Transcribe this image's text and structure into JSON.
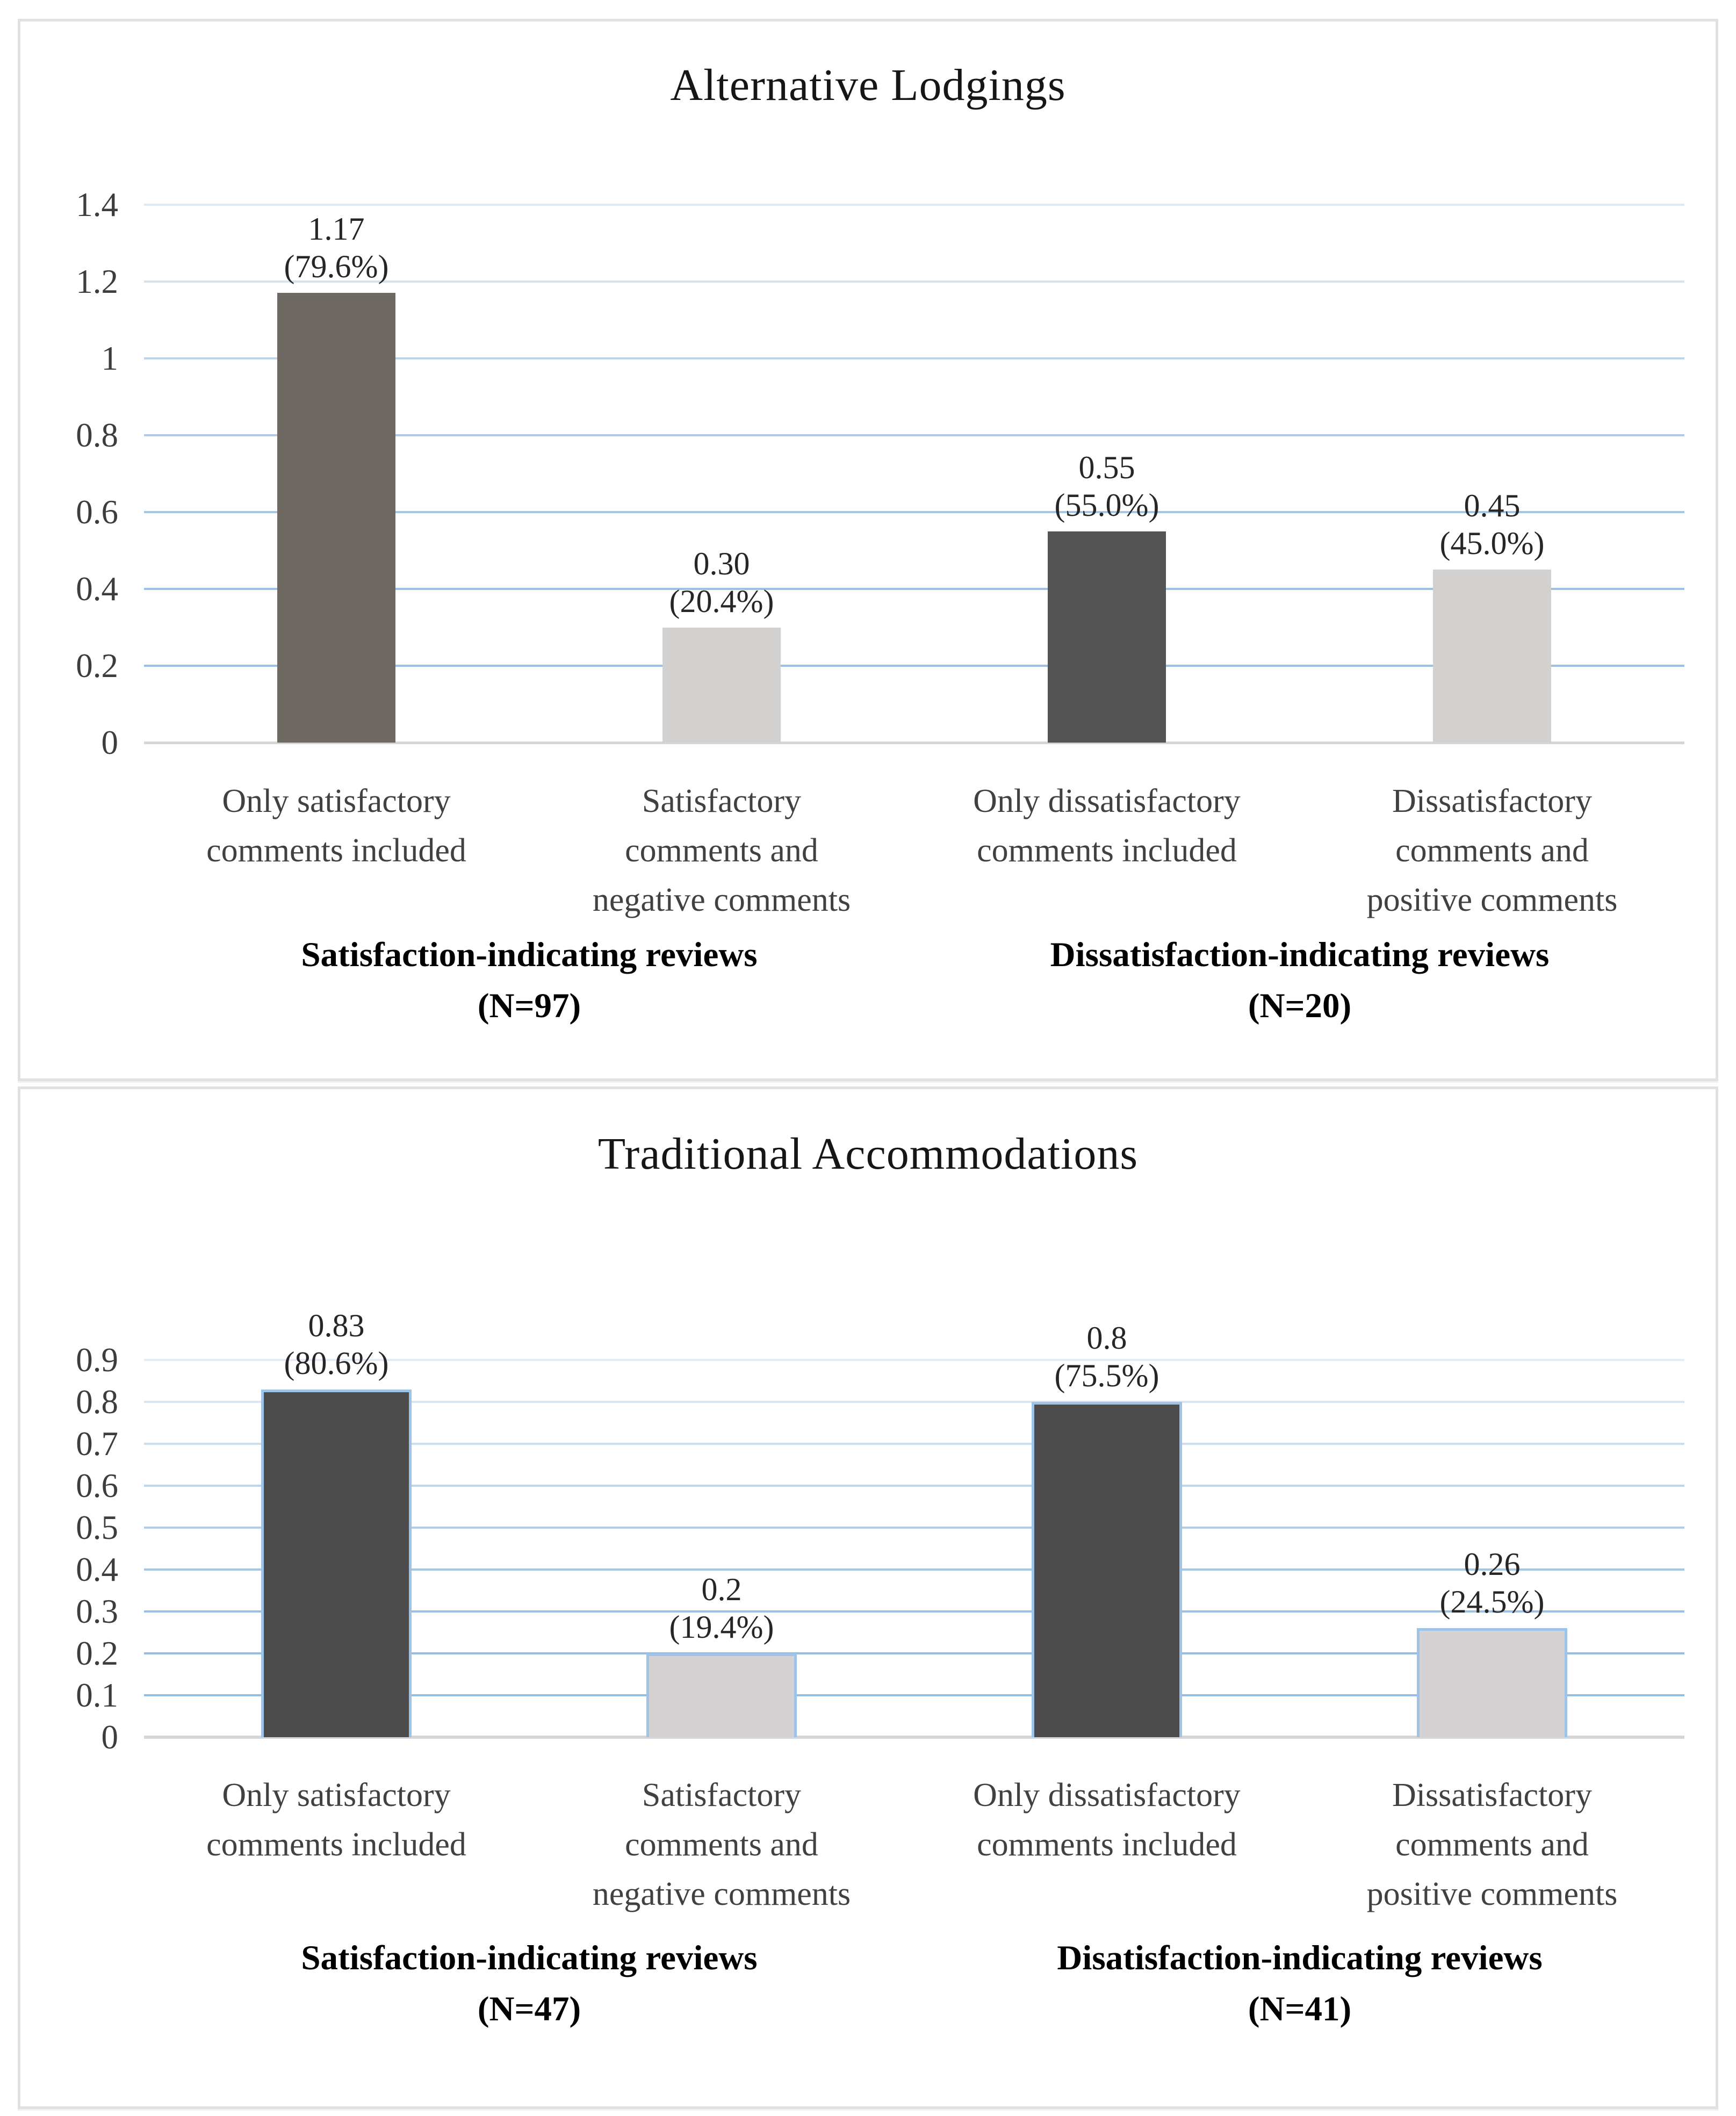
{
  "figure": {
    "top_panel_title": "Alternative Lodgings",
    "bottom_panel_title": "Traditional Accommodations"
  },
  "colors": {
    "gridline_blue_strong": "#9cc0e4",
    "gridline_blue_pale": "#dfe9f4",
    "baseline_gray": "#d6d6d6",
    "bar_dark_warm_gray": "#6e6963",
    "bar_dark_neutral_gray": "#4b4b4b",
    "bar_light_gray": "#d3d1d0",
    "bar_border_blue": "#9dc3e6",
    "tick_text": "#3d3d3d",
    "category_text": "#414141",
    "title_text": "#161616"
  },
  "chart_data": [
    {
      "type": "bar",
      "title": "Alternative Lodgings",
      "categories": [
        [
          "Only satisfactory",
          "comments included"
        ],
        [
          "Satisfactory",
          "comments and",
          "negative comments"
        ],
        [
          "Only dissatisfactory",
          "comments included"
        ],
        [
          "Dissatisfactory",
          "comments and",
          "positive comments"
        ]
      ],
      "values": [
        1.17,
        0.3,
        0.55,
        0.45
      ],
      "value_labels": [
        "1.17",
        "0.30",
        "0.55",
        "0.45"
      ],
      "pct_labels": [
        "(79.6%)",
        "(20.4%)",
        "(55.0%)",
        "(45.0%)"
      ],
      "groups": [
        {
          "label": "Satisfaction-indicating reviews",
          "n": "(N=97)"
        },
        {
          "label": "Dissatisfaction-indicating reviews",
          "n": "(N=20)"
        }
      ],
      "xlabel": "",
      "ylabel": "",
      "ylim": [
        0,
        1.4
      ],
      "ytick_labels": [
        "1.4",
        "1.2",
        "1",
        "0.8",
        "0.6",
        "0.4",
        "0.2",
        "0"
      ],
      "grid": true,
      "legend": false,
      "bar_colors": [
        "#6e6963",
        "#d3d1d0",
        "#545454",
        "#d3d1d0"
      ],
      "bar_border": null
    },
    {
      "type": "bar",
      "title": "Traditional Accommodations",
      "categories": [
        [
          "Only satisfactory",
          "comments included"
        ],
        [
          "Satisfactory",
          "comments and",
          "negative comments"
        ],
        [
          "Only dissatisfactory",
          "comments included"
        ],
        [
          "Dissatisfactory",
          "comments and",
          "positive comments"
        ]
      ],
      "values": [
        0.83,
        0.2,
        0.8,
        0.26
      ],
      "value_labels": [
        "0.83",
        "0.2",
        "0.8",
        "0.26"
      ],
      "pct_labels": [
        "(80.6%)",
        "(19.4%)",
        "(75.5%)",
        "(24.5%)"
      ],
      "groups": [
        {
          "label": "Satisfaction-indicating reviews",
          "n": "(N=47)"
        },
        {
          "label": "Disatisfaction-indicating reviews",
          "n": "(N=41)"
        }
      ],
      "xlabel": "",
      "ylabel": "",
      "ylim": [
        0,
        0.9
      ],
      "ytick_labels": [
        "0.9",
        "0.8",
        "0.7",
        "0.6",
        "0.5",
        "0.4",
        "0.3",
        "0.2",
        "0.1",
        "0"
      ],
      "grid": true,
      "legend": false,
      "bar_colors": [
        "#4b4b4b",
        "#d4d2d2",
        "#4b4b4b",
        "#d4d2d2"
      ],
      "bar_border": "#9dc3e6"
    }
  ]
}
